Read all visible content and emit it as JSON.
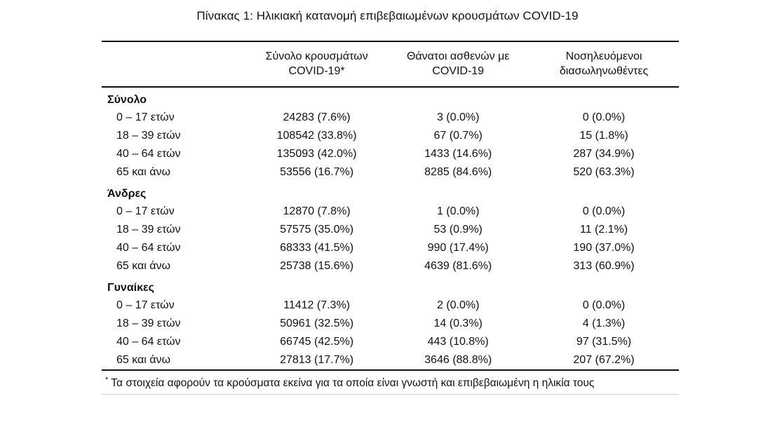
{
  "title": "Πίνακας 1: Ηλικιακή κατανομή επιβεβαιωμένων κρουσμάτων COVID-19",
  "table": {
    "columns": [
      {
        "line1": "",
        "line2": ""
      },
      {
        "line1": "Σύνολο κρουσμάτων",
        "line2": "COVID-19*"
      },
      {
        "line1": "Θάνατοι ασθενών με",
        "line2": "COVID-19"
      },
      {
        "line1": "Νοσηλευόμενοι",
        "line2": "διασωληνωθέντες"
      }
    ],
    "groups": [
      {
        "label": "Σύνολο",
        "rows": [
          {
            "age": "0 – 17 ετών",
            "cases": "24283 (7.6%)",
            "deaths": "3 (0.0%)",
            "intubated": "0 (0.0%)"
          },
          {
            "age": "18 – 39 ετών",
            "cases": "108542 (33.8%)",
            "deaths": "67 (0.7%)",
            "intubated": "15 (1.8%)"
          },
          {
            "age": "40 – 64 ετών",
            "cases": "135093 (42.0%)",
            "deaths": "1433 (14.6%)",
            "intubated": "287 (34.9%)"
          },
          {
            "age": "65 και άνω",
            "cases": "53556 (16.7%)",
            "deaths": "8285 (84.6%)",
            "intubated": "520 (63.3%)"
          }
        ]
      },
      {
        "label": "Άνδρες",
        "rows": [
          {
            "age": "0 – 17 ετών",
            "cases": "12870 (7.8%)",
            "deaths": "1 (0.0%)",
            "intubated": "0 (0.0%)"
          },
          {
            "age": "18 – 39 ετών",
            "cases": "57575 (35.0%)",
            "deaths": "53 (0.9%)",
            "intubated": "11 (2.1%)"
          },
          {
            "age": "40 – 64 ετών",
            "cases": "68333 (41.5%)",
            "deaths": "990 (17.4%)",
            "intubated": "190 (37.0%)"
          },
          {
            "age": "65 και άνω",
            "cases": "25738 (15.6%)",
            "deaths": "4639 (81.6%)",
            "intubated": "313 (60.9%)"
          }
        ]
      },
      {
        "label": "Γυναίκες",
        "rows": [
          {
            "age": "0 – 17 ετών",
            "cases": "11412 (7.3%)",
            "deaths": "2 (0.0%)",
            "intubated": "0 (0.0%)"
          },
          {
            "age": "18 – 39 ετών",
            "cases": "50961 (32.5%)",
            "deaths": "14 (0.3%)",
            "intubated": "4 (1.3%)"
          },
          {
            "age": "40 – 64 ετών",
            "cases": "66745 (42.5%)",
            "deaths": "443 (10.8%)",
            "intubated": "97 (31.5%)"
          },
          {
            "age": "65 και άνω",
            "cases": "27813 (17.7%)",
            "deaths": "3646 (88.8%)",
            "intubated": "207 (67.2%)"
          }
        ]
      }
    ]
  },
  "footnote": {
    "marker": "*",
    "text": "Τα στοιχεία αφορούν τα κρούσματα εκείνα για τα οποία είναι γνωστή και επιβεβαιωμένη η ηλικία τους"
  },
  "colors": {
    "text": "#111111",
    "rule": "#111111",
    "footnote_rule": "#c9ced6"
  }
}
